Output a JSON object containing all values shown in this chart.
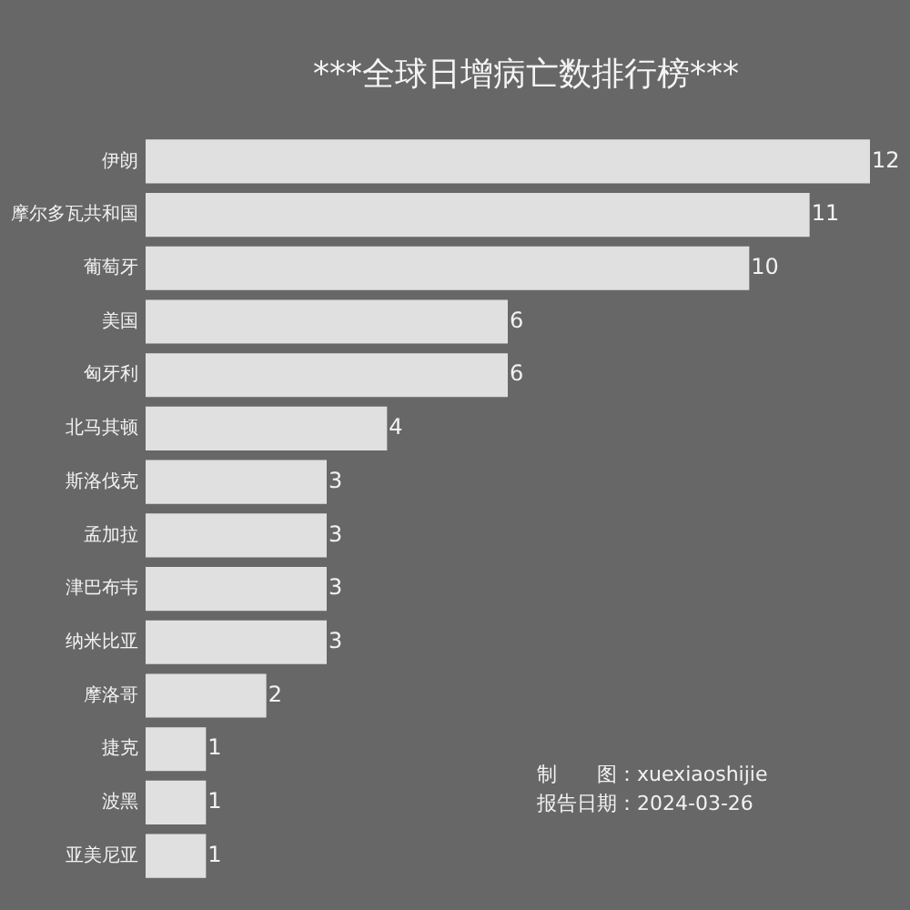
{
  "chart_data": {
    "type": "bar",
    "orientation": "horizontal",
    "title": "***全球日增病亡数排行榜***",
    "categories": [
      "伊朗",
      "摩尔多瓦共和国",
      "葡萄牙",
      "美国",
      "匈牙利",
      "北马其顿",
      "斯洛伐克",
      "孟加拉",
      "津巴布韦",
      "纳米比亚",
      "摩洛哥",
      "捷克",
      "波黑",
      "亚美尼亚"
    ],
    "values": [
      12,
      11,
      10,
      6,
      6,
      4,
      3,
      3,
      3,
      3,
      2,
      1,
      1,
      1
    ],
    "color": "#e0e0e0",
    "xlim": [
      0,
      12
    ],
    "tick_labels": "y",
    "data_labels": true,
    "annotations": [
      "制　　图：xuexiaoshijie",
      "报告日期：2024-03-26"
    ]
  }
}
